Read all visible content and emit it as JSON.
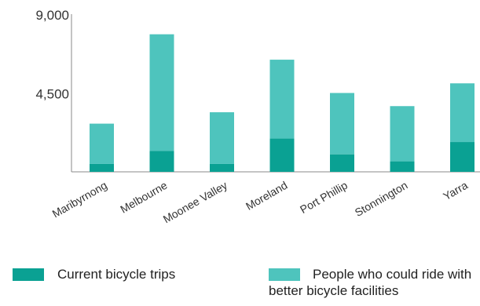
{
  "chart_data": {
    "type": "bar",
    "stacked": true,
    "categories": [
      "Maribyrnong",
      "Melbourne",
      "Moonee Valley",
      "Moreland",
      "Port Phillip",
      "Stonnington",
      "Yarra"
    ],
    "series": [
      {
        "name": "Current bicycle trips",
        "values": [
          450,
          1200,
          450,
          1900,
          1000,
          600,
          1700
        ],
        "color": "#0aa193"
      },
      {
        "name": "People who could ride with better bicycle facilities",
        "values": [
          2300,
          6650,
          2950,
          4500,
          3500,
          3150,
          3350
        ],
        "color": "#4ec4bd"
      }
    ],
    "y_ticks": [
      "9,000",
      "4,500"
    ],
    "y_tick_values": [
      9000,
      4500
    ],
    "ylim": [
      0,
      9000
    ],
    "grid": false,
    "legend_position": "bottom"
  }
}
